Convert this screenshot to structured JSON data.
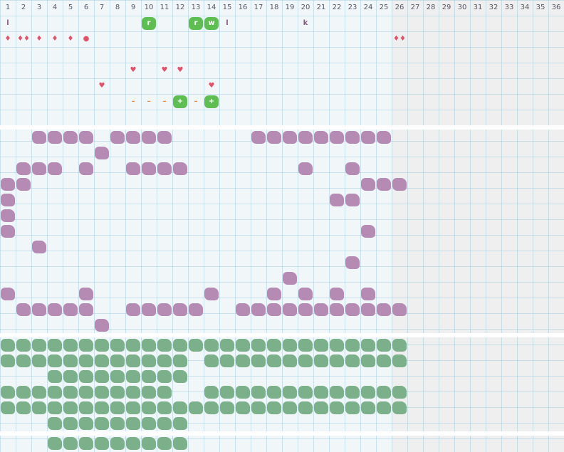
{
  "columns": [
    "1",
    "2",
    "3",
    "4",
    "5",
    "6",
    "7",
    "8",
    "9",
    "10",
    "11",
    "12",
    "13",
    "14",
    "15",
    "16",
    "17",
    "18",
    "19",
    "20",
    "21",
    "22",
    "23",
    "24",
    "25",
    "26",
    "27",
    "28",
    "29",
    "30",
    "31",
    "32",
    "33",
    "34",
    "35",
    "36"
  ],
  "active_columns": 25,
  "colors": {
    "purple": "#b58bb4",
    "green": "#7cb08a",
    "accent_green": "#5fbe52",
    "red": "#e0526a",
    "orange": "#f08a3a",
    "inactive": "#efefef"
  },
  "track1": {
    "letters": [
      {
        "col": 1,
        "row": 1,
        "char": "l"
      },
      {
        "col": 15,
        "row": 1,
        "char": "l"
      },
      {
        "col": 20,
        "row": 1,
        "char": "k"
      }
    ],
    "green_letters": [
      {
        "col": 10,
        "row": 1,
        "char": "r"
      },
      {
        "col": 13,
        "row": 1,
        "char": "r"
      },
      {
        "col": 14,
        "row": 1,
        "char": "w"
      }
    ],
    "drops": [
      {
        "col": 1,
        "row": 2,
        "char": "♦"
      },
      {
        "col": 2,
        "row": 2,
        "char": "♦♦"
      },
      {
        "col": 3,
        "row": 2,
        "char": "♦"
      },
      {
        "col": 4,
        "row": 2,
        "char": "♦"
      },
      {
        "col": 5,
        "row": 2,
        "char": "♦"
      },
      {
        "col": 6,
        "row": 2,
        "char": "●"
      },
      {
        "col": 26,
        "row": 2,
        "char": "♦♦"
      }
    ],
    "hearts": [
      {
        "col": 9,
        "row": 4,
        "char": "♥"
      },
      {
        "col": 11,
        "row": 4,
        "char": "♥"
      },
      {
        "col": 12,
        "row": 4,
        "char": "♥"
      },
      {
        "col": 7,
        "row": 5,
        "char": "♥"
      },
      {
        "col": 14,
        "row": 5,
        "char": "♥"
      }
    ],
    "dashes": [
      {
        "col": 9,
        "row": 6,
        "char": "–"
      },
      {
        "col": 10,
        "row": 6,
        "char": "–"
      },
      {
        "col": 11,
        "row": 6,
        "char": "–"
      },
      {
        "col": 13,
        "row": 6,
        "char": "–"
      }
    ],
    "green_plus": [
      {
        "col": 12,
        "row": 6,
        "char": "+"
      },
      {
        "col": 14,
        "row": 6,
        "char": "+"
      }
    ]
  },
  "track2": {
    "rows": [
      {
        "row": 1,
        "cols": [
          3,
          4,
          5,
          6,
          8,
          9,
          10,
          11,
          17,
          18,
          19,
          20,
          21,
          22,
          23,
          24,
          25
        ]
      },
      {
        "row": 2,
        "cols": [
          7
        ]
      },
      {
        "row": 3,
        "cols": [
          2,
          3,
          4,
          6,
          9,
          10,
          11,
          12,
          20,
          23
        ]
      },
      {
        "row": 4,
        "cols": [
          1,
          2,
          24,
          25,
          26
        ]
      },
      {
        "row": 5,
        "cols": [
          1,
          22,
          23
        ]
      },
      {
        "row": 6,
        "cols": [
          1
        ]
      },
      {
        "row": 7,
        "cols": [
          1,
          24
        ]
      },
      {
        "row": 8,
        "cols": [
          3
        ]
      },
      {
        "row": 9,
        "cols": [
          23
        ]
      },
      {
        "row": 10,
        "cols": [
          19
        ]
      },
      {
        "row": 11,
        "cols": [
          1,
          6,
          14,
          18,
          20,
          22,
          24
        ]
      },
      {
        "row": 12,
        "cols": [
          2,
          3,
          4,
          5,
          6,
          9,
          10,
          11,
          12,
          13,
          16,
          17,
          18,
          19,
          20,
          21,
          22,
          23,
          24,
          25,
          26
        ]
      },
      {
        "row": 13,
        "cols": [
          7
        ]
      }
    ]
  },
  "track3": {
    "rows": [
      {
        "row": 1,
        "cols": [
          1,
          2,
          3,
          4,
          5,
          6,
          7,
          8,
          9,
          10,
          11,
          12,
          13,
          14,
          15,
          16,
          17,
          18,
          19,
          20,
          21,
          22,
          23,
          24,
          25,
          26
        ]
      },
      {
        "row": 2,
        "cols": [
          1,
          2,
          3,
          4,
          5,
          6,
          7,
          8,
          9,
          10,
          11,
          12,
          14,
          15,
          16,
          17,
          18,
          19,
          20,
          21,
          22,
          23,
          24,
          25,
          26
        ]
      },
      {
        "row": 3,
        "cols": [
          4,
          5,
          6,
          7,
          8,
          9,
          10,
          11,
          12
        ]
      },
      {
        "row": 4,
        "cols": [
          1,
          2,
          3,
          4,
          5,
          6,
          7,
          8,
          9,
          10,
          11,
          14,
          15,
          16,
          17,
          18,
          19,
          20,
          21,
          22,
          23,
          24,
          25,
          26
        ]
      },
      {
        "row": 5,
        "cols": [
          1,
          2,
          3,
          4,
          5,
          6,
          7,
          8,
          9,
          10,
          11,
          12,
          13,
          14,
          15,
          16,
          17,
          18,
          19,
          20,
          21,
          22,
          23,
          24,
          25,
          26
        ]
      },
      {
        "row": 6,
        "cols": [
          4,
          5,
          6,
          7,
          8,
          9,
          10,
          11,
          12
        ]
      }
    ]
  },
  "track4": {
    "rows": [
      {
        "row": 1,
        "cols": [
          4,
          5,
          6,
          7,
          8,
          9,
          10,
          11,
          12
        ]
      }
    ]
  }
}
